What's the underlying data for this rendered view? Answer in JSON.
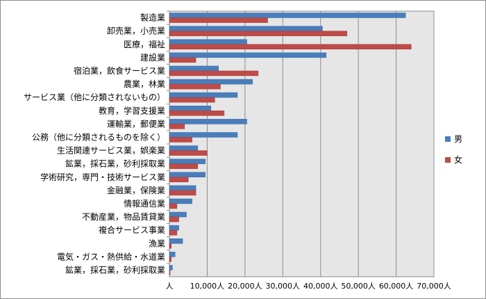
{
  "chart_data": {
    "type": "bar",
    "orientation": "horizontal",
    "categories": [
      "製造業",
      "卸売業，小売業",
      "医療，福祉",
      "建設業",
      "宿泊業，飲食サービス業",
      "農業，林業",
      "サービス業（他に分類されないもの）",
      "教育，学習支援業",
      "運輸業，郵便業",
      "公務（他に分類されるものを除く）",
      "生活関連サービス業，娯楽業",
      "鉱業，採石業，砂利採取業",
      "学術研究，専門・技術サービス業",
      "金融業，保険業",
      "情報通信業",
      "不動産業，物品賃貸業",
      "複合サービス事業",
      "漁業",
      "電気・ガス・熱供給・水道業",
      "鉱業，採石業，砂利採取業"
    ],
    "series": [
      {
        "name": "男",
        "color": "#4a7ebb",
        "values": [
          62500,
          40500,
          20500,
          41500,
          13000,
          22000,
          18000,
          11000,
          20500,
          18000,
          7500,
          9500,
          9500,
          7000,
          6000,
          4500,
          2500,
          3500,
          1500,
          800
        ]
      },
      {
        "name": "女",
        "color": "#be4b48",
        "values": [
          26000,
          47000,
          64000,
          7000,
          23500,
          13500,
          12000,
          14500,
          4000,
          6000,
          10000,
          7500,
          5000,
          7000,
          2000,
          2500,
          2000,
          500,
          500,
          200
        ]
      }
    ],
    "x_ticks": [
      "人",
      "10,000人",
      "20,000人",
      "30,000人",
      "40,000人",
      "50,000人",
      "60,000人",
      "70,000人"
    ],
    "xlim": [
      0,
      70000
    ],
    "xlabel": "",
    "ylabel": "",
    "title": "",
    "grid": true,
    "legend_position": "right"
  }
}
